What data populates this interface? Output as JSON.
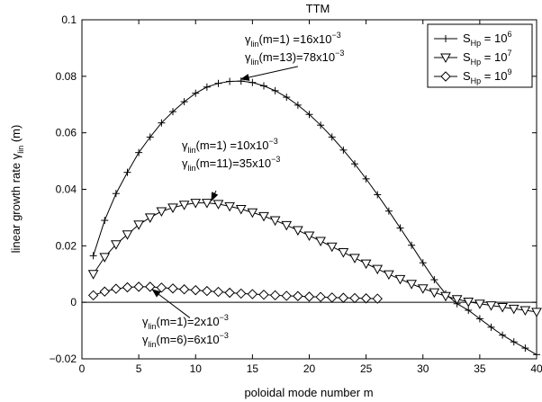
{
  "chart_data": {
    "type": "line",
    "title": "TTM",
    "xlabel": "poloidal mode number m",
    "ylabel_main": "linear growth rate γ",
    "ylabel_sub": "lin",
    "ylabel_tail": " (m)",
    "xlim": [
      0,
      40
    ],
    "ylim": [
      -0.02,
      0.1
    ],
    "xticks": [
      0,
      5,
      10,
      15,
      20,
      25,
      30,
      35,
      40
    ],
    "yticks": [
      -0.02,
      0,
      0.02,
      0.04,
      0.06,
      0.08,
      0.1
    ],
    "xtick_labels": [
      "0",
      "5",
      "10",
      "15",
      "20",
      "25",
      "30",
      "35",
      "40"
    ],
    "ytick_labels": [
      "−0.02",
      "0",
      "0.02",
      "0.04",
      "0.06",
      "0.08",
      "0.1"
    ],
    "grid": false,
    "legend_position": "top-right",
    "series": [
      {
        "name_main": "S",
        "name_sub": "Hp",
        "name_mid": " = 10",
        "name_sup": "6",
        "marker": "plus",
        "x": [
          1,
          2,
          3,
          4,
          5,
          6,
          7,
          8,
          9,
          10,
          11,
          12,
          13,
          14,
          15,
          16,
          17,
          18,
          19,
          20,
          21,
          22,
          23,
          24,
          25,
          26,
          27,
          28,
          29,
          30,
          31,
          32,
          33,
          34,
          35,
          36,
          37,
          38,
          39,
          40
        ],
        "y": [
          0.0165,
          0.029,
          0.0385,
          0.046,
          0.053,
          0.0585,
          0.0635,
          0.0675,
          0.071,
          0.074,
          0.0762,
          0.0775,
          0.0782,
          0.0783,
          0.0778,
          0.0766,
          0.0749,
          0.0726,
          0.0698,
          0.0665,
          0.0627,
          0.0585,
          0.0539,
          0.049,
          0.0437,
          0.0381,
          0.0323,
          0.0263,
          0.0202,
          0.014,
          0.008,
          0.003,
          -0.0005,
          -0.0028,
          -0.0058,
          -0.0088,
          -0.0116,
          -0.014,
          -0.0162,
          -0.0185
        ]
      },
      {
        "name_main": "S",
        "name_sub": "Hp",
        "name_mid": " = 10",
        "name_sup": "7",
        "marker": "triangle-down",
        "x": [
          1,
          2,
          3,
          4,
          5,
          6,
          7,
          8,
          9,
          10,
          11,
          12,
          13,
          14,
          15,
          16,
          17,
          18,
          19,
          20,
          21,
          22,
          23,
          24,
          25,
          26,
          27,
          28,
          29,
          30,
          31,
          32,
          33,
          34,
          35,
          36,
          37,
          38,
          39,
          40
        ],
        "y": [
          0.01,
          0.016,
          0.0205,
          0.024,
          0.0275,
          0.03,
          0.0322,
          0.0335,
          0.0345,
          0.0352,
          0.0352,
          0.0348,
          0.034,
          0.033,
          0.0318,
          0.0305,
          0.029,
          0.0273,
          0.0255,
          0.0236,
          0.0217,
          0.0197,
          0.0177,
          0.0157,
          0.0137,
          0.0118,
          0.0099,
          0.0082,
          0.0065,
          0.0049,
          0.0035,
          0.0022,
          0.0011,
          0.0002,
          -0.0005,
          -0.0011,
          -0.0017,
          -0.0023,
          -0.0028,
          -0.0034
        ]
      },
      {
        "name_main": "S",
        "name_sub": "Hp",
        "name_mid": " = 10",
        "name_sup": "9",
        "marker": "diamond",
        "x": [
          1,
          2,
          3,
          4,
          5,
          6,
          7,
          8,
          9,
          10,
          11,
          12,
          13,
          14,
          15,
          16,
          17,
          18,
          19,
          20,
          21,
          22,
          23,
          24,
          25,
          26
        ],
        "y": [
          0.0025,
          0.0038,
          0.0048,
          0.0053,
          0.0055,
          0.0055,
          0.0052,
          0.0049,
          0.0046,
          0.0043,
          0.004,
          0.0037,
          0.0034,
          0.0031,
          0.0029,
          0.0027,
          0.0025,
          0.0023,
          0.0022,
          0.002,
          0.0019,
          0.0017,
          0.0016,
          0.0015,
          0.0014,
          0.0013
        ]
      }
    ],
    "annotations": [
      {
        "lines": [
          {
            "a": "γ",
            "sub": "lin",
            "b": "(m=1)  =16x10",
            "sup": "−3"
          },
          {
            "a": "γ",
            "sub": "lin",
            "b": "(m=13)=78x10",
            "sup": "−3"
          }
        ],
        "arrow_from": [
          19.0,
          0.0835
        ],
        "arrow_to": [
          14.0,
          0.079
        ]
      },
      {
        "lines": [
          {
            "a": "γ",
            "sub": "lin",
            "b": "(m=1)  =10x10",
            "sup": "−3"
          },
          {
            "a": "γ",
            "sub": "lin",
            "b": "(m=11)=35x10",
            "sup": "−3"
          }
        ],
        "arrow_from": [
          11.8,
          0.0395
        ],
        "arrow_to": [
          11.4,
          0.036
        ]
      },
      {
        "lines": [
          {
            "a": "γ",
            "sub": "lin",
            "b": "(m=1)=2x10",
            "sup": "−3"
          },
          {
            "a": "γ",
            "sub": "lin",
            "b": "(m=6)=6x10",
            "sup": "−3"
          }
        ],
        "arrow_from": [
          9.5,
          -0.0055
        ],
        "arrow_to": [
          6.2,
          0.0045
        ]
      }
    ]
  }
}
